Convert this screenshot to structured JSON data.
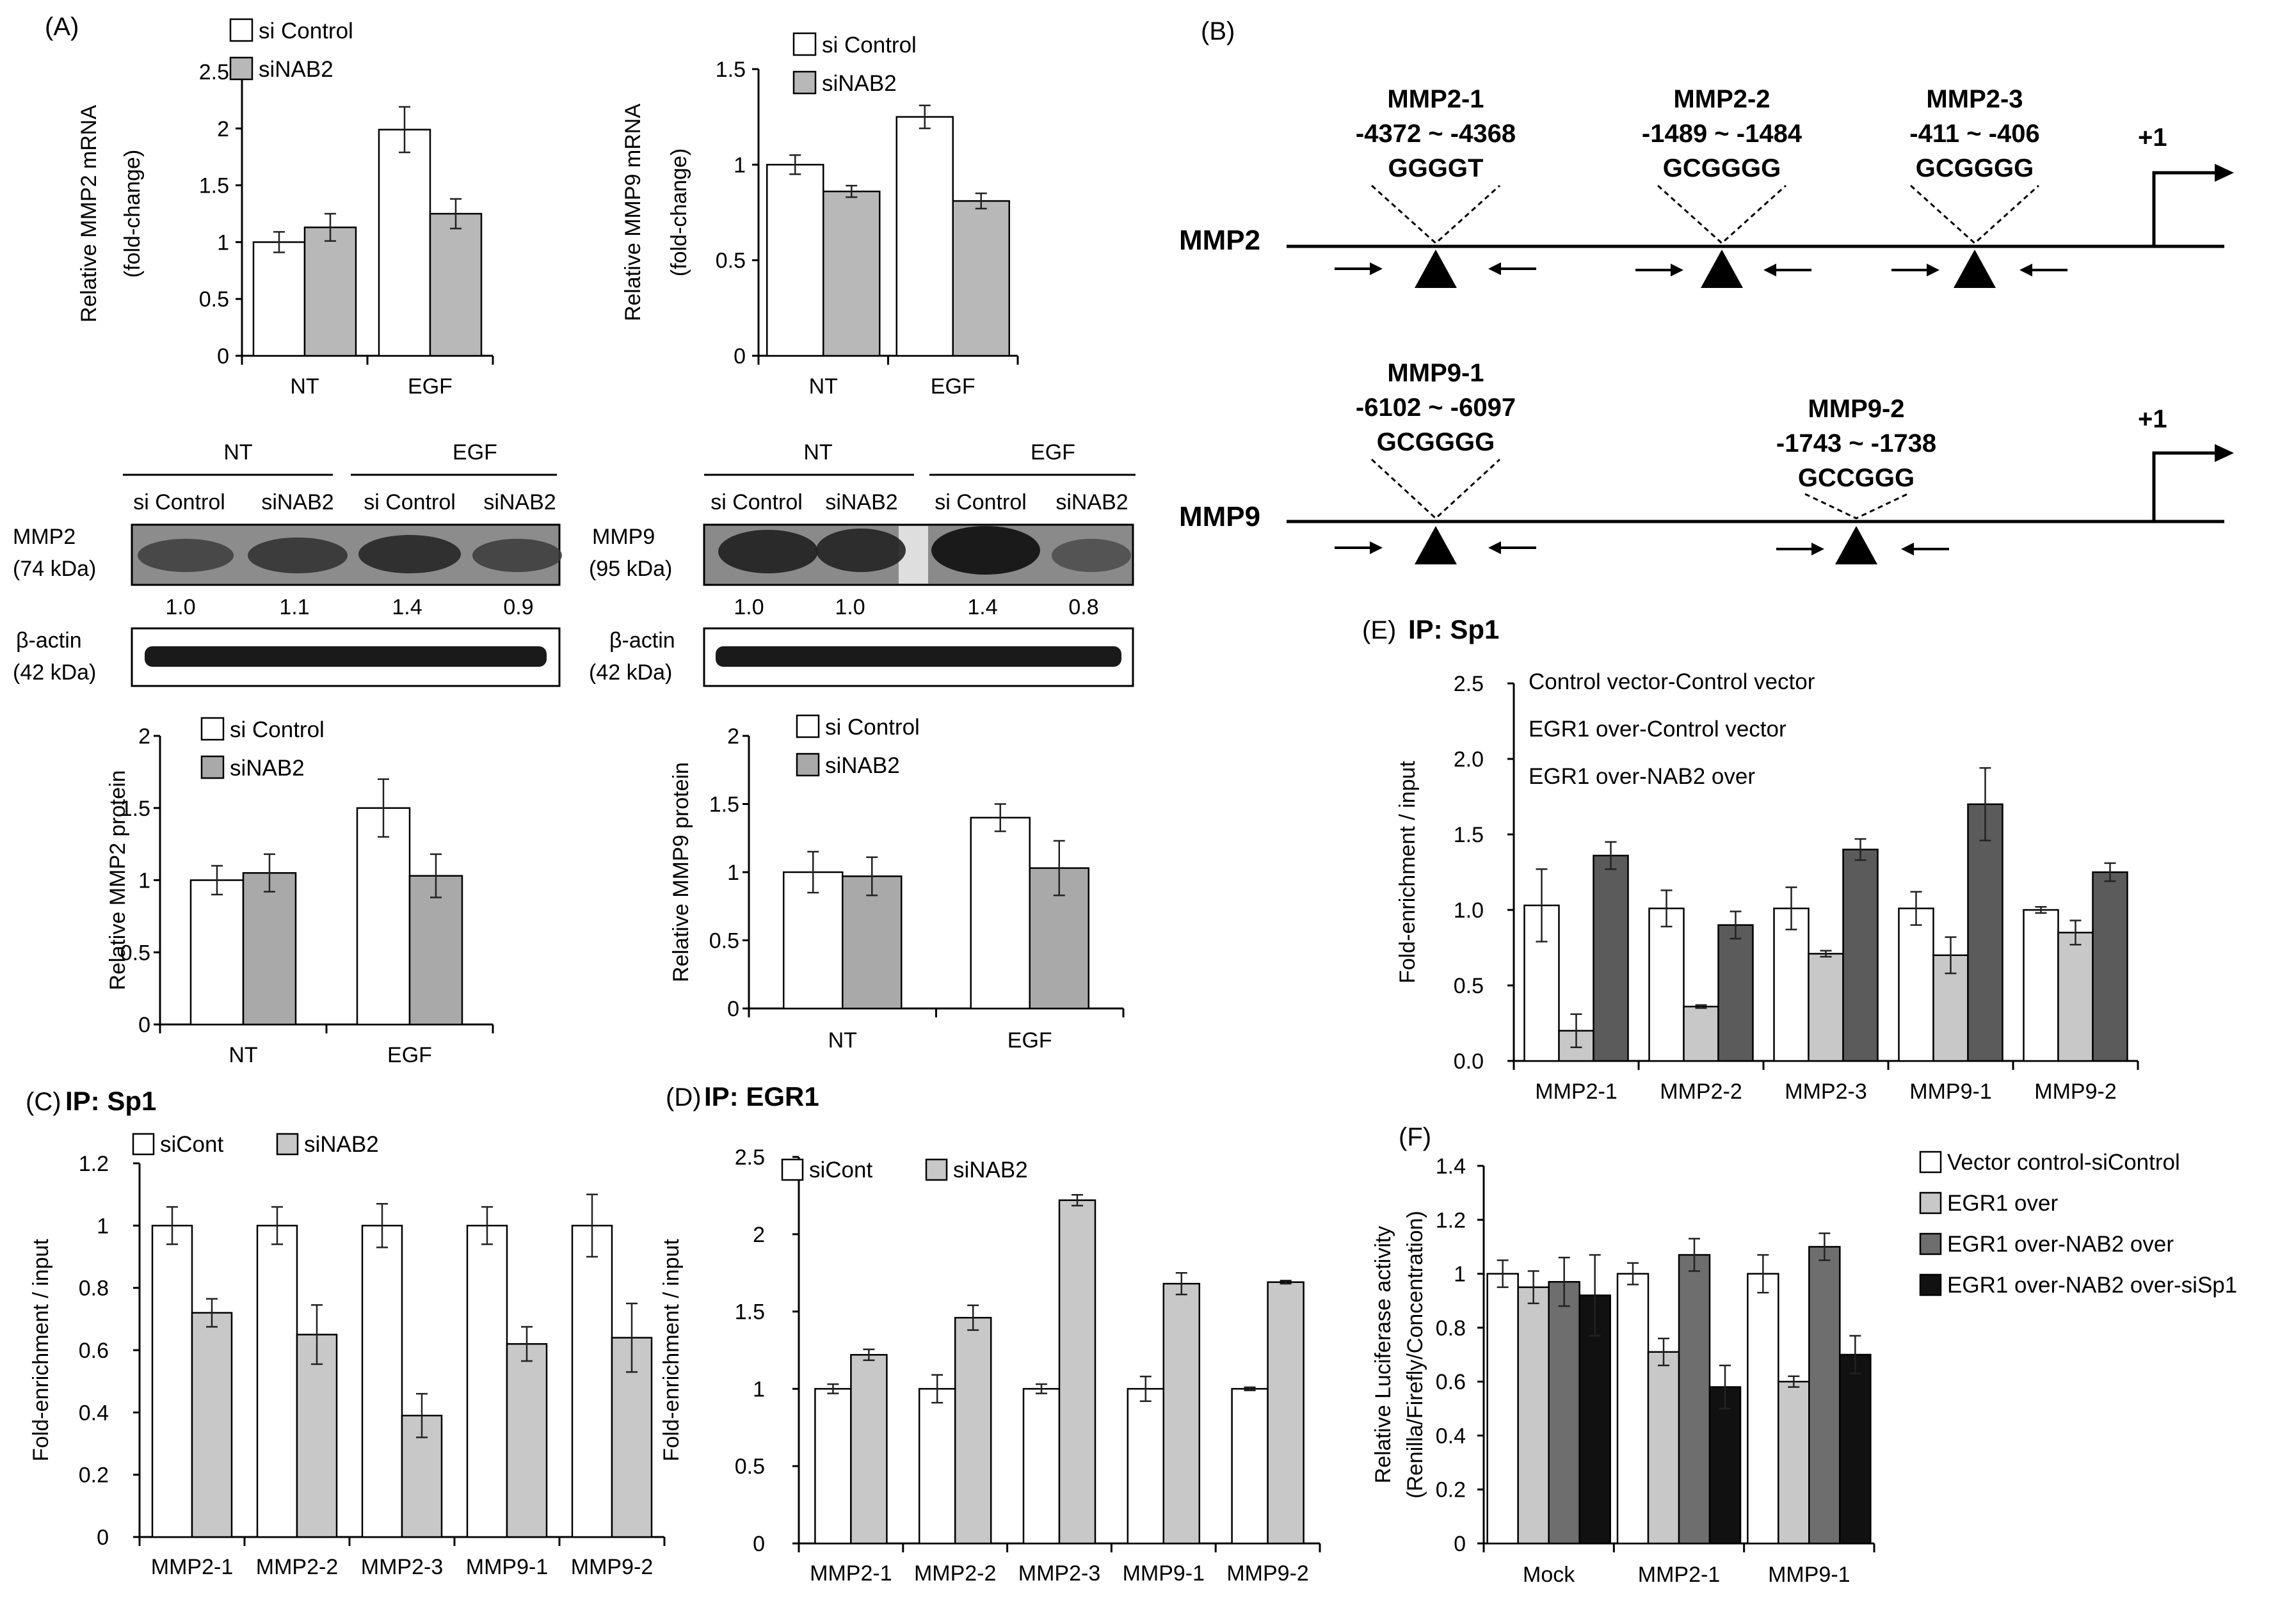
{
  "panel_labels": {
    "A": "(A)",
    "B": "(B)",
    "C": "(C)",
    "D": "(D)",
    "E": "(E)",
    "F": "(F)"
  },
  "colors": {
    "white": "#ffffff",
    "gray": "#b8b8b8",
    "light_gray": "#c8c8c8",
    "mid_gray": "#a9a9a9",
    "dark_gray": "#5b5b5b",
    "black": "#111111"
  },
  "chart_data": [
    {
      "id": "a_mmp2_mrna",
      "type": "bar",
      "ylabel": [
        "Relative MMP2 mRNA",
        "(fold-change)"
      ],
      "categories": [
        "NT",
        "EGF"
      ],
      "ylim": [
        0,
        2.5
      ],
      "ticks": [
        "0",
        "0.5",
        "1",
        "1.5",
        "2",
        "2.5"
      ],
      "series": [
        {
          "name": "si Control",
          "color": "#ffffff",
          "values": [
            1.0,
            1.99
          ],
          "errors": [
            0.09,
            0.2
          ]
        },
        {
          "name": "siNAB2",
          "color": "#b8b8b8",
          "values": [
            1.13,
            1.25
          ],
          "errors": [
            0.12,
            0.13
          ]
        }
      ]
    },
    {
      "id": "a_mmp9_mrna",
      "type": "bar",
      "ylabel": [
        "Relative MMP9 mRNA",
        "(fold-change)"
      ],
      "categories": [
        "NT",
        "EGF"
      ],
      "ylim": [
        0,
        1.5
      ],
      "ticks": [
        "0",
        "0.5",
        "1",
        "1.5"
      ],
      "series": [
        {
          "name": "si Control",
          "color": "#ffffff",
          "values": [
            1.0,
            1.25
          ],
          "errors": [
            0.05,
            0.06
          ]
        },
        {
          "name": "siNAB2",
          "color": "#b8b8b8",
          "values": [
            0.86,
            0.81
          ],
          "errors": [
            0.03,
            0.04
          ]
        }
      ]
    },
    {
      "id": "a_mmp2_protein",
      "type": "bar",
      "ylabel": [
        "Relative MMP2 protein"
      ],
      "categories": [
        "NT",
        "EGF"
      ],
      "ylim": [
        0,
        2
      ],
      "ticks": [
        "0",
        "0.5",
        "1",
        "1.5",
        "2"
      ],
      "series": [
        {
          "name": "si Control",
          "color": "#ffffff",
          "values": [
            1.0,
            1.5
          ],
          "errors": [
            0.1,
            0.2
          ]
        },
        {
          "name": "siNAB2",
          "color": "#a9a9a9",
          "values": [
            1.05,
            1.03
          ],
          "errors": [
            0.13,
            0.15
          ]
        }
      ]
    },
    {
      "id": "a_mmp9_protein",
      "type": "bar",
      "ylabel": [
        "Relative MMP9 protein"
      ],
      "categories": [
        "NT",
        "EGF"
      ],
      "ylim": [
        0,
        2
      ],
      "ticks": [
        "0",
        "0.5",
        "1",
        "1.5",
        "2"
      ],
      "series": [
        {
          "name": "si Control",
          "color": "#ffffff",
          "values": [
            1.0,
            1.4
          ],
          "errors": [
            0.15,
            0.1
          ]
        },
        {
          "name": "siNAB2",
          "color": "#a9a9a9",
          "values": [
            0.97,
            1.03
          ],
          "errors": [
            0.14,
            0.2
          ]
        }
      ]
    },
    {
      "id": "c_sp1",
      "type": "bar",
      "title": "IP: Sp1",
      "ylabel": [
        "Fold-enrichment / input"
      ],
      "categories": [
        "MMP2-1",
        "MMP2-2",
        "MMP2-3",
        "MMP9-1",
        "MMP9-2"
      ],
      "ylim": [
        0,
        1.2
      ],
      "ticks": [
        "0",
        "0.2",
        "0.4",
        "0.6",
        "0.8",
        "1",
        "1.2"
      ],
      "series": [
        {
          "name": "siCont",
          "color": "#ffffff",
          "values": [
            1.0,
            1.0,
            1.0,
            1.0,
            1.0
          ],
          "errors": [
            0.06,
            0.06,
            0.07,
            0.06,
            0.1
          ]
        },
        {
          "name": "siNAB2",
          "color": "#c8c8c8",
          "values": [
            0.72,
            0.65,
            0.39,
            0.62,
            0.64
          ],
          "errors": [
            0.045,
            0.095,
            0.07,
            0.055,
            0.11
          ]
        }
      ]
    },
    {
      "id": "d_egr1",
      "type": "bar",
      "title": "IP: EGR1",
      "ylabel": [
        "Fold-enrichment / input"
      ],
      "categories": [
        "MMP2-1",
        "MMP2-2",
        "MMP2-3",
        "MMP9-1",
        "MMP9-2"
      ],
      "ylim": [
        0,
        2.5
      ],
      "ticks": [
        "0",
        "0.5",
        "1",
        "1.5",
        "2",
        "2.5"
      ],
      "series": [
        {
          "name": "siCont",
          "color": "#ffffff",
          "values": [
            1.0,
            1.0,
            1.0,
            1.0,
            1.0
          ],
          "errors": [
            0.03,
            0.09,
            0.03,
            0.08,
            0.01
          ]
        },
        {
          "name": "siNAB2",
          "color": "#c8c8c8",
          "values": [
            1.22,
            1.46,
            2.22,
            1.68,
            1.69
          ],
          "errors": [
            0.035,
            0.08,
            0.035,
            0.07,
            0.01
          ]
        }
      ]
    },
    {
      "id": "e_sp1_overexpression",
      "type": "bar",
      "title": "IP: Sp1",
      "ylabel": [
        "Fold-enrichment / input"
      ],
      "categories": [
        "MMP2-1",
        "MMP2-2",
        "MMP2-3",
        "MMP9-1",
        "MMP9-2"
      ],
      "ylim": [
        0,
        2.5
      ],
      "ticks": [
        "0.0",
        "0.5",
        "1.0",
        "1.5",
        "2.0",
        "2.5"
      ],
      "series": [
        {
          "name": "Control vector-Control vector",
          "color": "#ffffff",
          "values": [
            1.03,
            1.01,
            1.01,
            1.01,
            1.0
          ],
          "errors": [
            0.24,
            0.12,
            0.14,
            0.11,
            0.02
          ]
        },
        {
          "name": "EGR1 over-Control vector",
          "color": "#c8c8c8",
          "values": [
            0.2,
            0.36,
            0.71,
            0.7,
            0.85
          ],
          "errors": [
            0.11,
            0.01,
            0.02,
            0.12,
            0.08
          ]
        },
        {
          "name": "EGR1 over-NAB2 over",
          "color": "#5b5b5b",
          "values": [
            1.36,
            0.9,
            1.4,
            1.7,
            1.25
          ],
          "errors": [
            0.09,
            0.09,
            0.07,
            0.24,
            0.06
          ]
        }
      ],
      "legend_style": "text-only"
    },
    {
      "id": "f_luciferase",
      "type": "bar",
      "ylabel": [
        "Relative Luciferase activity",
        "(Renilla/Firefly/Concentration)"
      ],
      "categories": [
        "Mock",
        "MMP2-1",
        "MMP9-1"
      ],
      "ylim": [
        0,
        1.4
      ],
      "ticks": [
        "0",
        "0.2",
        "0.4",
        "0.6",
        "0.8",
        "1",
        "1.2",
        "1.4"
      ],
      "series": [
        {
          "name": "Vector control-siControl",
          "color": "#ffffff",
          "values": [
            1.0,
            1.0,
            1.0
          ],
          "errors": [
            0.05,
            0.04,
            0.07
          ]
        },
        {
          "name": "EGR1 over",
          "color": "#c8c8c8",
          "values": [
            0.95,
            0.71,
            0.6
          ],
          "errors": [
            0.06,
            0.05,
            0.02
          ]
        },
        {
          "name": "EGR1 over-NAB2 over",
          "color": "#6e6e6e",
          "values": [
            0.97,
            1.07,
            1.1
          ],
          "errors": [
            0.09,
            0.06,
            0.05
          ]
        },
        {
          "name": "EGR1 over-NAB2 over-siSp1",
          "color": "#111111",
          "values": [
            0.92,
            0.58,
            0.7
          ],
          "errors": [
            0.15,
            0.08,
            0.07
          ]
        }
      ]
    }
  ],
  "western": {
    "mmp2": {
      "groups": [
        "NT",
        "EGF"
      ],
      "lanes": [
        "si Control",
        "siNAB2",
        "si Control",
        "siNAB2"
      ],
      "band_label": [
        "MMP2",
        "(74 kDa)"
      ],
      "quant": [
        "1.0",
        "1.1",
        "1.4",
        "0.9"
      ],
      "actin_label": [
        "β-actin",
        "(42 kDa)"
      ]
    },
    "mmp9": {
      "groups": [
        "NT",
        "EGF"
      ],
      "lanes": [
        "si Control",
        "siNAB2",
        "si Control",
        "siNAB2"
      ],
      "band_label": [
        "MMP9",
        "(95 kDa)"
      ],
      "quant": [
        "1.0",
        "1.0",
        "1.4",
        "0.8"
      ],
      "actin_label": [
        "β-actin",
        "(42 kDa)"
      ]
    }
  },
  "promoter": {
    "mmp2": {
      "gene": "MMP2",
      "sites": [
        {
          "name": "MMP2-1",
          "range": "-4372 ~ -4368",
          "motif": "GGGGT"
        },
        {
          "name": "MMP2-2",
          "range": "-1489 ~ -1484",
          "motif": "GCGGGG"
        },
        {
          "name": "MMP2-3",
          "range": "-411 ~ -406",
          "motif": "GCGGGG"
        }
      ],
      "tss": "+1"
    },
    "mmp9": {
      "gene": "MMP9",
      "sites": [
        {
          "name": "MMP9-1",
          "range": "-6102 ~ -6097",
          "motif": "GCGGGG"
        },
        {
          "name": "MMP9-2",
          "range": "-1743 ~ -1738",
          "motif": "GCCGGG"
        }
      ],
      "tss": "+1"
    }
  }
}
